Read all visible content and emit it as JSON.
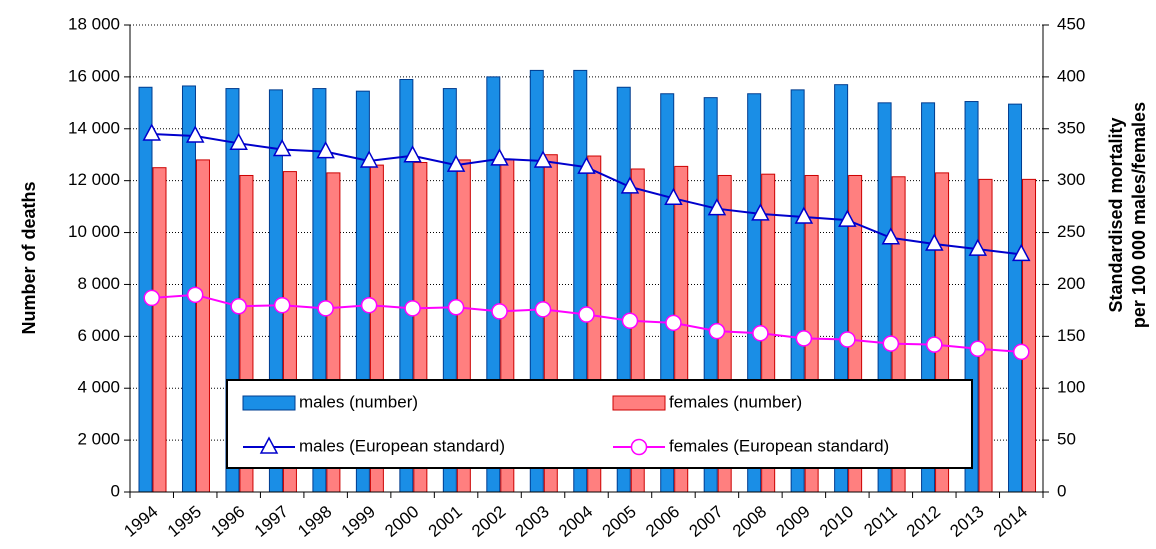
{
  "chart_data": {
    "type": "bar-line",
    "categories": [
      "1994",
      "1995",
      "1996",
      "1997",
      "1998",
      "1999",
      "2000",
      "2001",
      "2002",
      "2003",
      "2004",
      "2005",
      "2006",
      "2007",
      "2008",
      "2009",
      "2010",
      "2011",
      "2012",
      "2013",
      "2014"
    ],
    "series": [
      {
        "name": "males (number)",
        "kind": "bar",
        "color": "#1a8ee6",
        "values": [
          15600,
          15650,
          15550,
          15500,
          15550,
          15450,
          15900,
          15550,
          16000,
          16250,
          16250,
          15600,
          15350,
          15200,
          15350,
          15500,
          15700,
          15000,
          15000,
          15050,
          14950
        ]
      },
      {
        "name": "females (number)",
        "kind": "bar",
        "color": "#ff7f7f",
        "values": [
          12500,
          12800,
          12200,
          12350,
          12300,
          12600,
          12700,
          12800,
          12800,
          13000,
          12950,
          12450,
          12550,
          12200,
          12250,
          12200,
          12200,
          12150,
          12300,
          12050,
          12050
        ]
      },
      {
        "name": "males (European standard)",
        "kind": "line",
        "marker": "triangle",
        "axis": "y2",
        "color": "#0000cc",
        "values": [
          345,
          343,
          336,
          330,
          328,
          319,
          324,
          315,
          321,
          319,
          313,
          294,
          283,
          273,
          268,
          265,
          262,
          245,
          239,
          234,
          229
        ]
      },
      {
        "name": "females (European standard)",
        "kind": "line",
        "marker": "circle",
        "axis": "y2",
        "color": "#ff00ff",
        "values": [
          187,
          190,
          179,
          180,
          177,
          180,
          177,
          178,
          174,
          176,
          171,
          165,
          163,
          155,
          153,
          148,
          147,
          143,
          142,
          138,
          135
        ]
      }
    ],
    "ylabel": "Number of deaths",
    "y2label": [
      "Standardised mortality",
      "per 100 000 males/females"
    ],
    "ylim": [
      0,
      18000
    ],
    "yticks": [
      0,
      {
        "value": 2000,
        "label": "2 000"
      },
      {
        "value": 4000,
        "label": "4 000"
      },
      {
        "value": 6000,
        "label": "6 000"
      },
      {
        "value": 8000,
        "label": "8 000"
      },
      {
        "value": 10000,
        "label": "10 000"
      },
      {
        "value": 12000,
        "label": "12 000"
      },
      {
        "value": 14000,
        "label": "14 000"
      },
      {
        "value": 16000,
        "label": "16 000"
      },
      {
        "value": 18000,
        "label": "18 000"
      }
    ],
    "y2lim": [
      0,
      450
    ],
    "y2ticks": [
      0,
      50,
      100,
      150,
      200,
      250,
      300,
      350,
      400,
      450
    ],
    "grid": true,
    "legend": "lower center"
  }
}
